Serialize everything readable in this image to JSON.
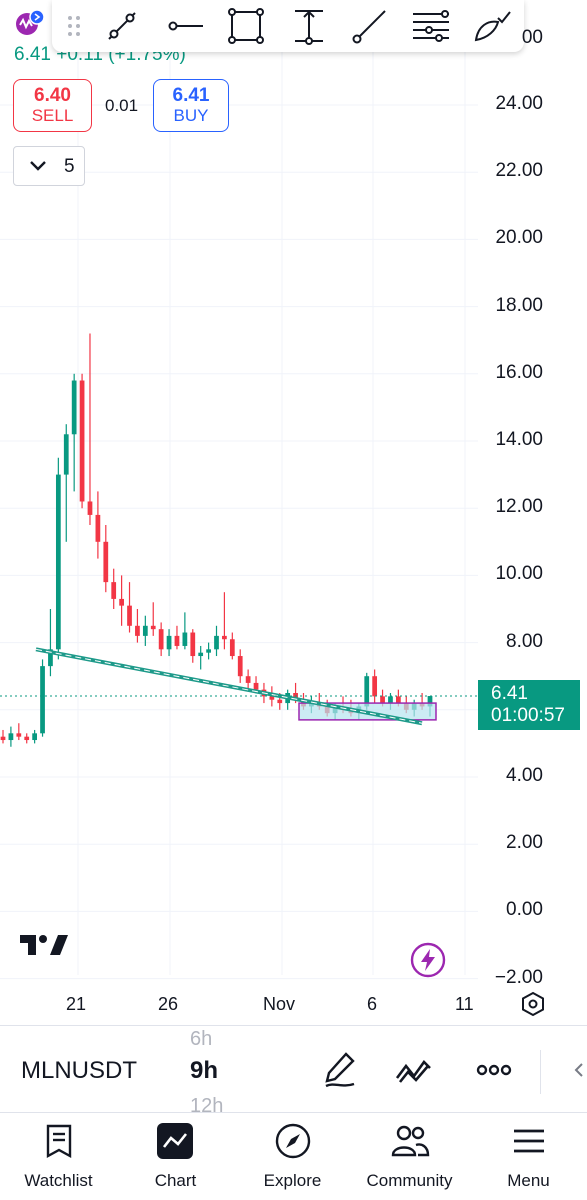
{
  "toolbar": {
    "handle_icon": "drag-handle-icon",
    "tools": [
      "trend-line-icon",
      "horizontal-line-icon",
      "rectangle-icon",
      "price-range-icon",
      "ray-icon",
      "parallel-channel-icon",
      "brush-icon"
    ]
  },
  "header": {
    "price_change": "6.41 +0.11 (+1.75%)",
    "sell_price": "6.40",
    "sell_label": "SELL",
    "spread": "0.01",
    "buy_price": "6.41",
    "buy_label": "BUY",
    "indicator_count": "5"
  },
  "price_axis": {
    "labels": [
      "24.00",
      "22.00",
      "20.00",
      "18.00",
      "16.00",
      "14.00",
      "12.00",
      "10.00",
      "8.00",
      "4.00",
      "2.00",
      "0.00",
      "−2.00"
    ],
    "top_partial": "00"
  },
  "time_axis": {
    "labels": [
      "21",
      "26",
      "Nov",
      "6",
      "11"
    ]
  },
  "last_price_tag": {
    "price": "6.41",
    "countdown": "01:00:57"
  },
  "chart_data": {
    "type": "candlestick",
    "symbol": "MLNUSDT",
    "interval": "9h",
    "ylim": [
      -2,
      25
    ],
    "x_ticks": [
      "21",
      "26",
      "Nov",
      "6",
      "11"
    ],
    "candles": [
      [
        5.2,
        5.4,
        5.0,
        5.1
      ],
      [
        5.1,
        5.5,
        4.9,
        5.3
      ],
      [
        5.3,
        5.6,
        5.1,
        5.2
      ],
      [
        5.2,
        5.3,
        5.0,
        5.1
      ],
      [
        5.1,
        5.4,
        5.0,
        5.3
      ],
      [
        5.3,
        7.5,
        5.2,
        7.3
      ],
      [
        7.3,
        9.0,
        7.0,
        7.8
      ],
      [
        7.8,
        13.5,
        7.5,
        13.0
      ],
      [
        13.0,
        14.5,
        11.0,
        14.2
      ],
      [
        14.2,
        16.0,
        12.5,
        15.8
      ],
      [
        15.8,
        16.0,
        12.0,
        12.2
      ],
      [
        12.2,
        17.2,
        11.5,
        11.8
      ],
      [
        11.8,
        12.5,
        10.5,
        11.0
      ],
      [
        11.0,
        11.5,
        9.5,
        9.8
      ],
      [
        9.8,
        10.2,
        9.0,
        9.3
      ],
      [
        9.3,
        10.0,
        8.5,
        9.1
      ],
      [
        9.1,
        9.8,
        8.3,
        8.5
      ],
      [
        8.5,
        9.0,
        8.0,
        8.2
      ],
      [
        8.2,
        8.8,
        7.9,
        8.5
      ],
      [
        8.5,
        9.2,
        8.2,
        8.4
      ],
      [
        8.4,
        8.6,
        7.6,
        7.8
      ],
      [
        7.8,
        8.4,
        7.6,
        8.2
      ],
      [
        8.2,
        8.5,
        7.8,
        7.9
      ],
      [
        7.9,
        8.9,
        7.8,
        8.3
      ],
      [
        8.3,
        8.4,
        7.4,
        7.6
      ],
      [
        7.6,
        7.9,
        7.2,
        7.7
      ],
      [
        7.7,
        8.0,
        7.5,
        7.8
      ],
      [
        7.8,
        8.5,
        7.6,
        8.2
      ],
      [
        8.2,
        9.5,
        7.8,
        8.1
      ],
      [
        8.1,
        8.3,
        7.5,
        7.6
      ],
      [
        7.6,
        7.8,
        6.8,
        7.0
      ],
      [
        7.0,
        7.2,
        6.6,
        6.8
      ],
      [
        6.8,
        7.0,
        6.5,
        6.6
      ],
      [
        6.6,
        6.8,
        6.2,
        6.4
      ],
      [
        6.4,
        6.7,
        6.1,
        6.3
      ],
      [
        6.3,
        6.5,
        6.0,
        6.2
      ],
      [
        6.2,
        6.6,
        6.0,
        6.5
      ],
      [
        6.5,
        6.8,
        6.2,
        6.3
      ],
      [
        6.3,
        6.5,
        6.0,
        6.1
      ],
      [
        6.1,
        6.4,
        5.9,
        6.2
      ],
      [
        6.2,
        6.5,
        6.0,
        6.1
      ],
      [
        6.1,
        6.3,
        5.8,
        5.9
      ],
      [
        5.9,
        6.2,
        5.7,
        6.1
      ],
      [
        6.1,
        6.4,
        5.9,
        6.0
      ],
      [
        6.0,
        6.3,
        5.8,
        5.9
      ],
      [
        5.9,
        6.2,
        5.7,
        6.1
      ],
      [
        6.1,
        7.1,
        6.0,
        7.0
      ],
      [
        7.0,
        7.2,
        6.2,
        6.4
      ],
      [
        6.4,
        6.6,
        6.1,
        6.2
      ],
      [
        6.2,
        6.5,
        6.0,
        6.4
      ],
      [
        6.4,
        6.6,
        6.1,
        6.2
      ],
      [
        6.2,
        6.4,
        5.9,
        6.0
      ],
      [
        6.0,
        6.3,
        5.8,
        6.2
      ],
      [
        6.2,
        6.5,
        6.0,
        6.1
      ],
      [
        6.1,
        6.4,
        5.8,
        6.41
      ]
    ],
    "price_line": 6.41
  },
  "bottom_toolbar": {
    "symbol": "MLNUSDT",
    "interval_prev": "6h",
    "interval": "9h",
    "interval_next": "12h"
  },
  "tabs": [
    {
      "label": "Watchlist",
      "icon": "watchlist-icon"
    },
    {
      "label": "Chart",
      "icon": "chart-icon"
    },
    {
      "label": "Explore",
      "icon": "compass-icon"
    },
    {
      "label": "Community",
      "icon": "community-icon"
    },
    {
      "label": "Menu",
      "icon": "menu-icon"
    }
  ],
  "colors": {
    "up": "#089981",
    "down": "#f23645",
    "trendline": "#1e9a8a",
    "rectangle_fill": "#b7e4f0",
    "rectangle_border": "#9c27b0",
    "accent_blue": "#2962ff"
  }
}
